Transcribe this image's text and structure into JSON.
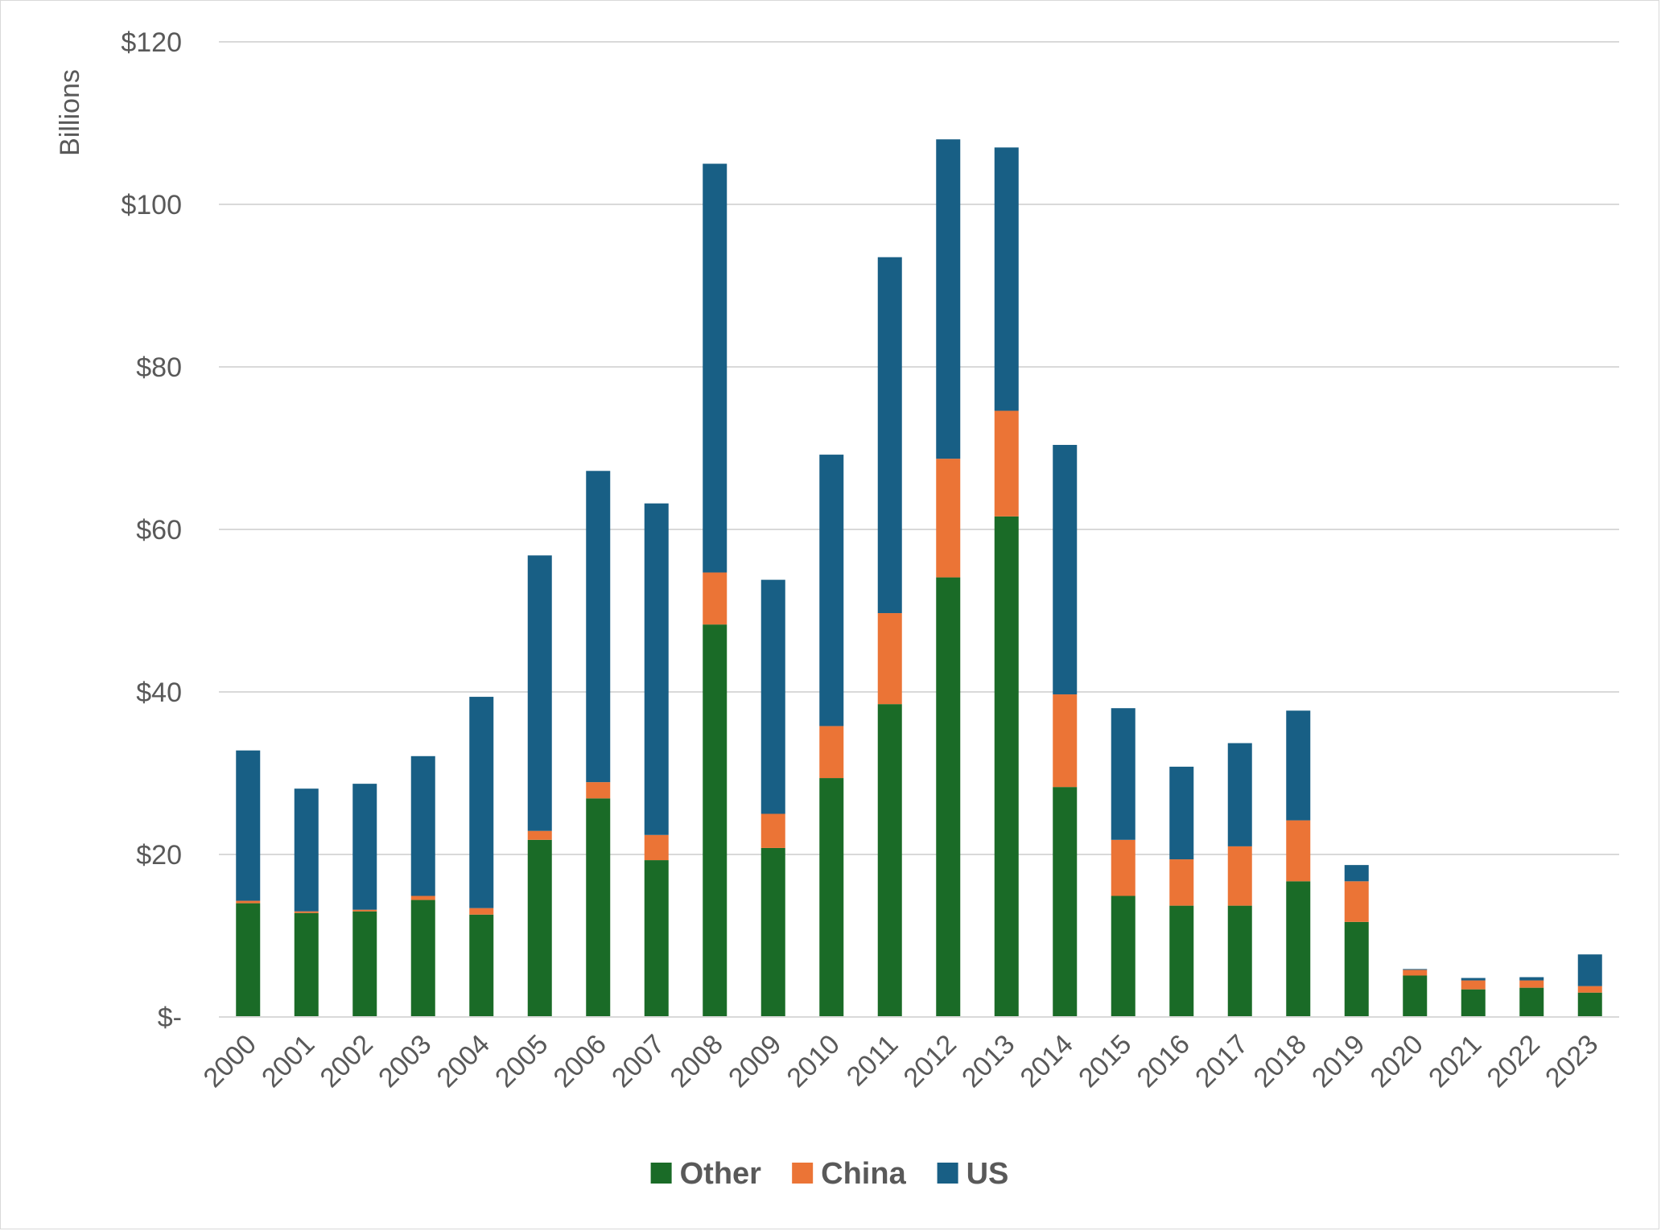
{
  "chart_data": {
    "type": "bar",
    "stacked": true,
    "title": "",
    "xlabel": "",
    "ylabel": "Billions",
    "ylim": [
      0,
      120
    ],
    "yticks": [
      0,
      20,
      40,
      60,
      80,
      100,
      120
    ],
    "ytick_labels": [
      "$-",
      "$20",
      "$40",
      "$60",
      "$80",
      "$100",
      "$120"
    ],
    "grid": true,
    "legend_position": "bottom",
    "categories": [
      "2000",
      "2001",
      "2002",
      "2003",
      "2004",
      "2005",
      "2006",
      "2007",
      "2008",
      "2009",
      "2010",
      "2011",
      "2012",
      "2013",
      "2014",
      "2015",
      "2016",
      "2017",
      "2018",
      "2019",
      "2020",
      "2021",
      "2022",
      "2023"
    ],
    "series": [
      {
        "name": "Other",
        "color": "#1a6b27",
        "values": [
          14.0,
          12.8,
          13.0,
          14.4,
          12.6,
          21.8,
          26.9,
          19.3,
          48.3,
          20.8,
          29.4,
          38.5,
          54.1,
          61.6,
          28.3,
          14.9,
          13.7,
          13.7,
          16.7,
          11.7,
          5.1,
          3.4,
          3.6,
          3.0
        ]
      },
      {
        "name": "China",
        "color": "#eb7436",
        "values": [
          0.3,
          0.2,
          0.2,
          0.5,
          0.8,
          1.1,
          2.0,
          3.1,
          6.4,
          4.2,
          6.4,
          11.2,
          14.6,
          13.0,
          11.4,
          6.9,
          5.7,
          7.3,
          7.5,
          5.0,
          0.7,
          1.1,
          0.9,
          0.8
        ]
      },
      {
        "name": "US",
        "color": "#185f85",
        "values": [
          18.5,
          15.1,
          15.5,
          17.2,
          26.0,
          33.9,
          38.3,
          40.8,
          50.3,
          28.8,
          33.4,
          43.8,
          39.3,
          32.4,
          30.7,
          16.2,
          11.4,
          12.7,
          13.5,
          2.0,
          0.1,
          0.3,
          0.4,
          3.9
        ]
      }
    ]
  }
}
